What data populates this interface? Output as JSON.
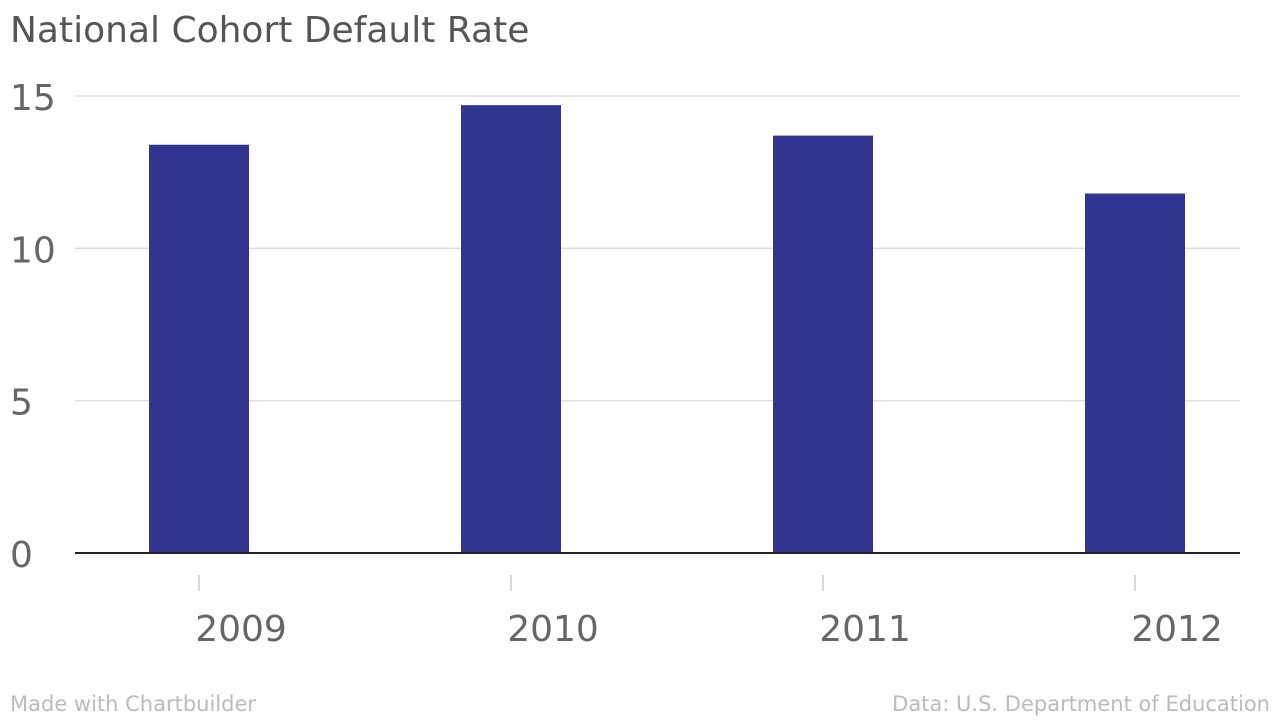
{
  "chart_data": {
    "type": "bar",
    "title": "National Cohort Default Rate",
    "categories": [
      "2009",
      "2010",
      "2011",
      "2012"
    ],
    "values": [
      13.4,
      14.7,
      13.7,
      11.8
    ],
    "ylim": [
      0,
      15
    ],
    "yticks": [
      "0",
      "5",
      "10",
      "15"
    ],
    "ytick_values": [
      0,
      5,
      10,
      15
    ],
    "xlabel": "",
    "ylabel": "",
    "grid": true,
    "bar_color": "#32358f",
    "grid_color": "#dddddd",
    "axis_color": "#222222"
  },
  "footer": {
    "credit": "Made with Chartbuilder",
    "source": "Data: U.S. Department of Education"
  }
}
